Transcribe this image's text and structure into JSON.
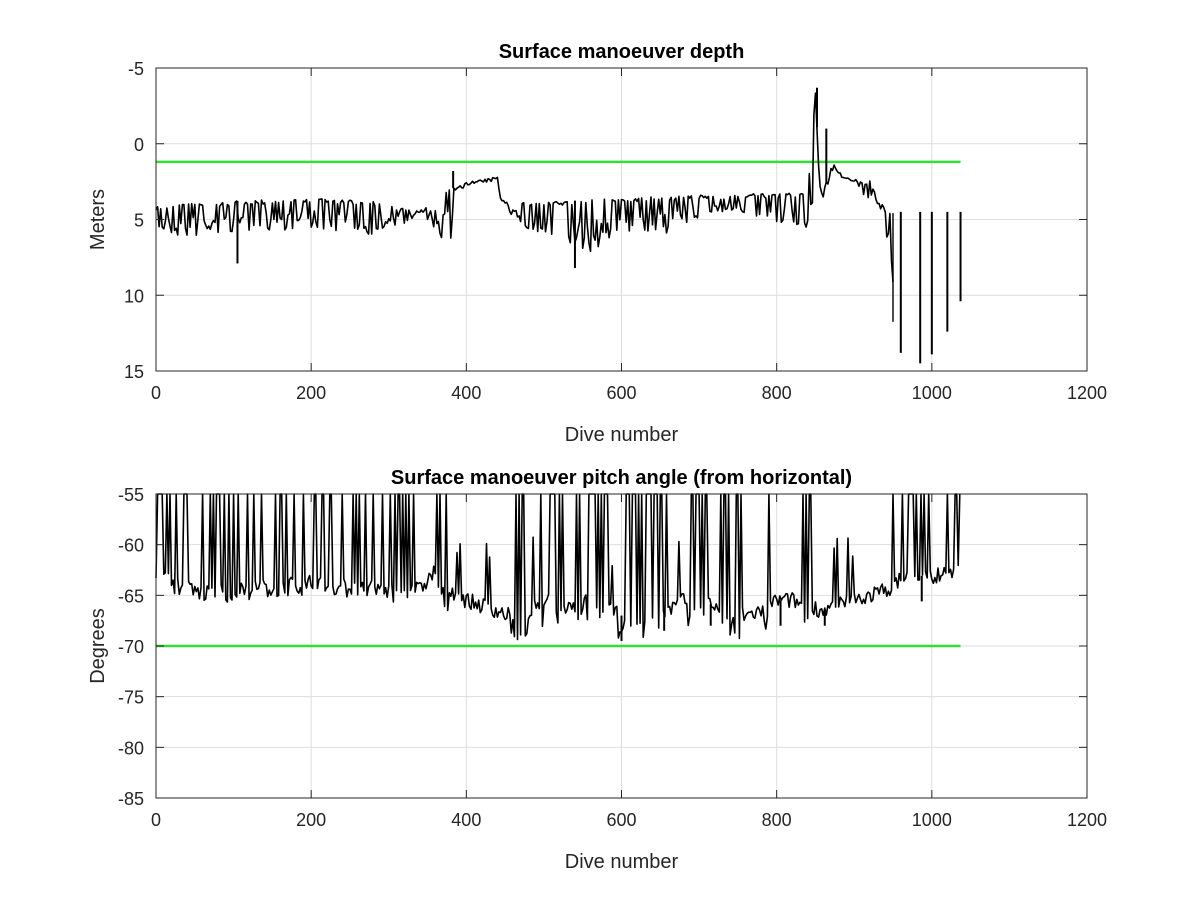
{
  "chart_data": [
    {
      "type": "line",
      "title": "Surface manoeuver depth",
      "xlabel": "Dive number",
      "ylabel": "Meters",
      "xlim": [
        0,
        1200
      ],
      "ylim": [
        -5,
        15
      ],
      "y_reversed": true,
      "grid": true,
      "xticks": [
        "0",
        "200",
        "400",
        "600",
        "800",
        "1000",
        "1200"
      ],
      "yticks": [
        "-5",
        "0",
        "5",
        "10",
        "15"
      ],
      "reference_line": {
        "y": 1.2,
        "x": [
          0,
          1037
        ],
        "color": "#33dd33"
      },
      "series": [
        {
          "color": "#000000",
          "x": [
            0,
            40,
            80,
            120,
            160,
            200,
            240,
            280,
            320,
            345,
            360,
            380,
            400,
            420,
            440,
            445,
            480,
            520,
            560,
            600,
            640,
            680,
            720,
            760,
            800,
            840,
            850,
            855,
            860,
            870,
            880,
            900,
            920,
            940,
            950
          ],
          "base": [
            4.1,
            3.9,
            3.9,
            3.7,
            3.7,
            3.6,
            3.7,
            3.8,
            4.3,
            4.5,
            2.8,
            3.0,
            2.6,
            2.5,
            2.3,
            3.8,
            3.9,
            3.8,
            3.7,
            3.6,
            3.5,
            3.4,
            3.4,
            3.3,
            3.3,
            3.2,
            -3.5,
            2.5,
            3.5,
            1.0,
            2.0,
            2.5,
            2.4,
            4.4,
            4.5
          ],
          "dip": [
            6.0,
            6.2,
            6.0,
            5.8,
            5.7,
            5.6,
            5.8,
            6.0,
            5.3,
            4.8,
            6.3,
            6.5,
            2.6,
            2.5,
            2.3,
            4.0,
            5.8,
            6.8,
            7.2,
            5.7,
            6.2,
            5.5,
            4.5,
            4.6,
            5.6,
            5.8,
            3.5,
            3.8,
            3.8,
            2.0,
            2.5,
            2.6,
            4.3,
            4.5,
            13.0
          ],
          "spikes": [
            {
              "x": 105,
              "y": 7.9
            },
            {
              "x": 383,
              "y": 1.8
            },
            {
              "x": 540,
              "y": 8.2
            },
            {
              "x": 852,
              "y": -3.7
            },
            {
              "x": 864,
              "y": -1.0
            },
            {
              "x": 960,
              "y": 13.8
            },
            {
              "x": 985,
              "y": 14.5
            },
            {
              "x": 1000,
              "y": 13.9
            },
            {
              "x": 1020,
              "y": 12.4
            },
            {
              "x": 1037,
              "y": 10.4
            }
          ]
        }
      ]
    },
    {
      "type": "line",
      "title": "Surface manoeuver pitch angle (from horizontal)",
      "xlabel": "Dive number",
      "ylabel": "Degrees",
      "xlim": [
        0,
        1200
      ],
      "ylim": [
        -85,
        -55
      ],
      "grid": true,
      "xticks": [
        "0",
        "200",
        "400",
        "600",
        "800",
        "1000",
        "1200"
      ],
      "yticks": [
        "-55",
        "-60",
        "-65",
        "-70",
        "-75",
        "-80",
        "-85"
      ],
      "reference_line": {
        "y": -70,
        "x": [
          0,
          1037
        ],
        "color": "#33dd33"
      },
      "series": [
        {
          "color": "#000000",
          "x": [
            0,
            40,
            80,
            120,
            160,
            200,
            240,
            280,
            320,
            340,
            360,
            380,
            400,
            420,
            440,
            460,
            480,
            500,
            520,
            540,
            560,
            580,
            600,
            620,
            640,
            660,
            680,
            700,
            720,
            740,
            760,
            780,
            800,
            820,
            840,
            860,
            880,
            900,
            920,
            940,
            960,
            980,
            1000,
            1020,
            1037
          ],
          "base": [
            -63.0,
            -64.5,
            -65.0,
            -64.5,
            -64.2,
            -64.0,
            -64.2,
            -64.5,
            -64.8,
            -64.5,
            -62.5,
            -64.5,
            -65.5,
            -66.0,
            -66.5,
            -67.2,
            -66.5,
            -65.5,
            -66.0,
            -66.0,
            -65.5,
            -66.0,
            -67.0,
            -67.5,
            -66.0,
            -66.5,
            -65.5,
            -65.5,
            -66.0,
            -66.5,
            -67.0,
            -66.5,
            -65.5,
            -65.5,
            -66.0,
            -66.5,
            -66.0,
            -65.5,
            -65.0,
            -64.5,
            -63.5,
            -63.0,
            -63.2,
            -63.0,
            -62.5
          ],
          "dense_bands": [
            [
              362,
              378
            ],
            [
              458,
              480
            ],
            [
              493,
              500
            ],
            [
              507,
              525
            ],
            [
              542,
              548
            ],
            [
              555,
              583
            ],
            [
              595,
              658
            ],
            [
              685,
              710
            ],
            [
              727,
              755
            ],
            [
              784,
              790
            ],
            [
              833,
              845
            ]
          ],
          "spikes": [
            {
              "x": 600,
              "y": -69.5
            },
            {
              "x": 655,
              "y": -68.5
            },
            {
              "x": 715,
              "y": -68.0
            },
            {
              "x": 805,
              "y": -68.0
            },
            {
              "x": 862,
              "y": -68.0
            },
            {
              "x": 987,
              "y": -65.6
            }
          ]
        }
      ]
    }
  ]
}
